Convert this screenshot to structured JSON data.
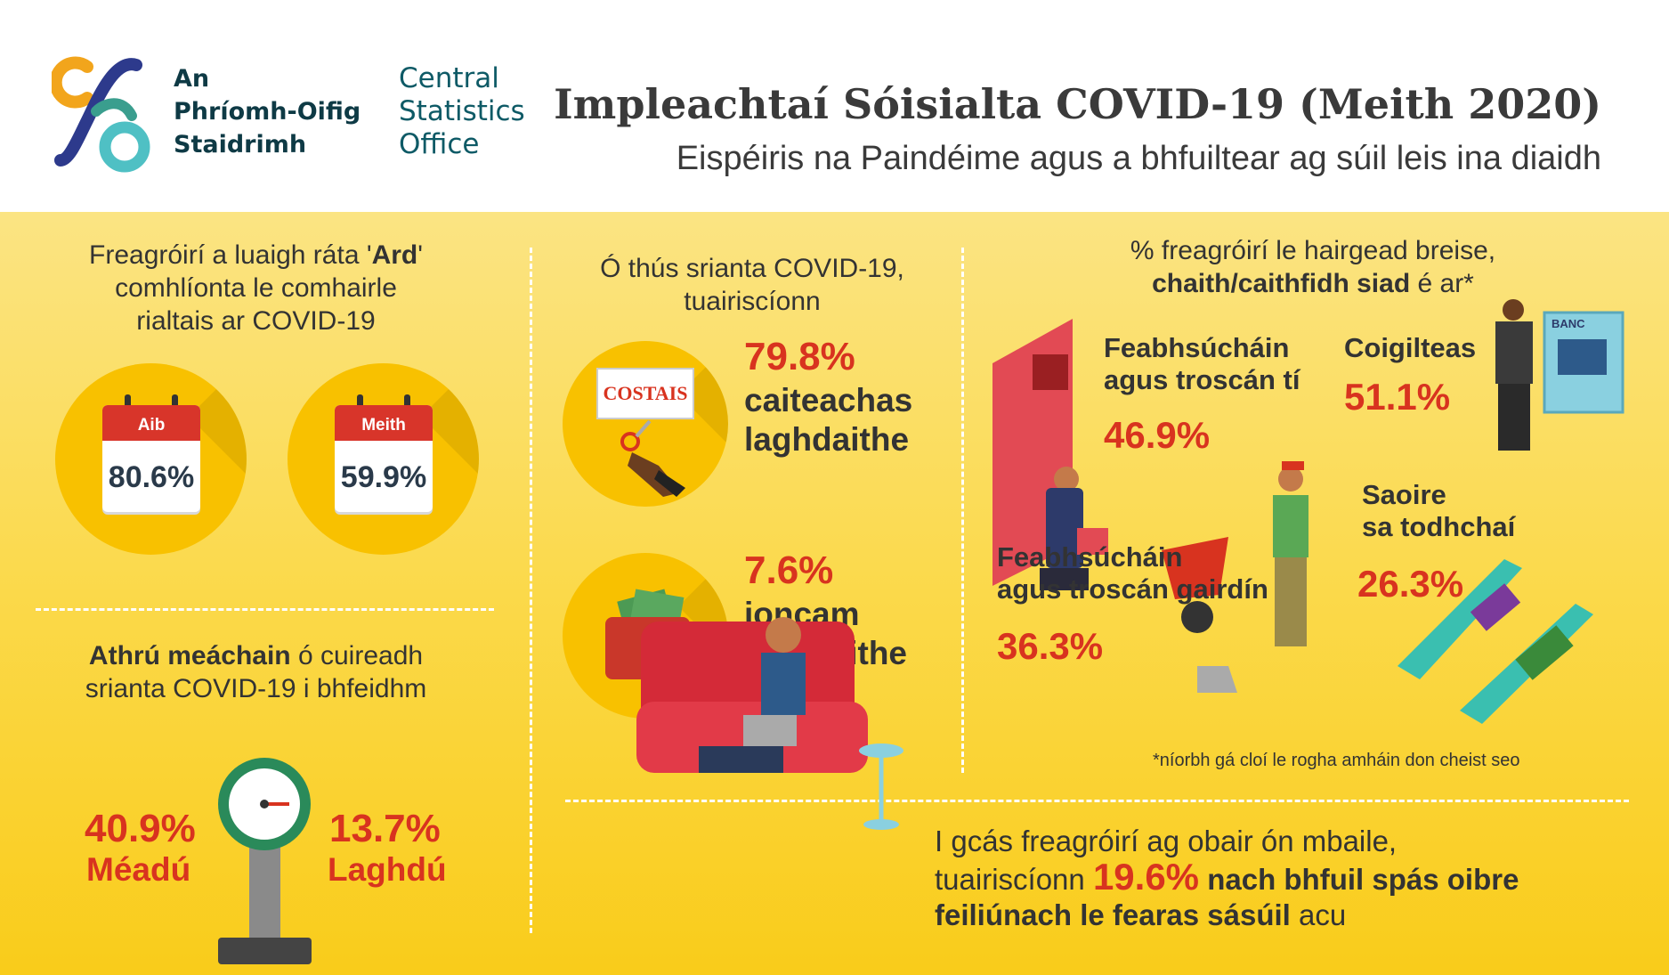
{
  "header": {
    "org_irish": [
      "An",
      "Phríomh-Oifig",
      "Staidrimh"
    ],
    "org_english": [
      "Central",
      "Statistics",
      "Office"
    ],
    "title": "Impleachtaí Sóisialta COVID-19 (Meith 2020)",
    "subtitle": "Eispéiris na Paindéime agus a bhfuiltear ag súil leis ina diaidh"
  },
  "compliance": {
    "heading_line1_pre": "Freagróirí a luaigh ráta '",
    "heading_line1_bold": "Ard",
    "heading_line1_post": "'",
    "heading_line2": "comhlíonta le comhairle",
    "heading_line3": "rialtais ar COVID-19",
    "april": {
      "month": "Aib",
      "value": "80.6%"
    },
    "may": {
      "month": "Meith",
      "value": "59.9%"
    }
  },
  "weight": {
    "heading_bold": "Athrú meáchain",
    "heading_rest": " ó cuireadh",
    "heading_line2": "srianta COVID-19 i bhfeidhm",
    "increase_pct": "40.9%",
    "increase_label": "Méadú",
    "decrease_pct": "13.7%",
    "decrease_label": "Laghdú"
  },
  "finance": {
    "heading_line1": "Ó thús srianta COVID-19,",
    "heading_line2": "tuairiscíonn",
    "costs_sign": "COSTAIS",
    "spending_pct": "79.8%",
    "spending_label1": "caiteachas",
    "spending_label2": "laghdaithe",
    "income_pct": "7.6%",
    "income_label1": "ioncam",
    "income_label2": "méadaithe"
  },
  "extra_money": {
    "heading_line1": "% freagróirí le hairgead breise,",
    "heading_bold": "chaith/caithfidh siad",
    "heading_post": " é ar*",
    "home": {
      "label1": "Feabhsúcháin",
      "label2": "agus troscán tí",
      "pct": "46.9%"
    },
    "savings": {
      "label": "Coigilteas",
      "pct": "51.1%"
    },
    "bank_sign": "BANC",
    "holiday": {
      "label1": "Saoire",
      "label2": "sa todhchaí",
      "pct": "26.3%"
    },
    "garden": {
      "label1": "Feabhsúcháin",
      "label2": "agus troscán gairdín",
      "pct": "36.3%"
    },
    "footnote": "*níorbh gá cloí le rogha amháin don cheist seo"
  },
  "wfh": {
    "line1": "I gcás freagróirí ag obair ón mbaile,",
    "line2_pre": "tuairiscíonn ",
    "line2_pct": "19.6%",
    "line2_bold": " nach bhfuil spás oibre",
    "line3_bold": "feiliúnach le fearas sásúil",
    "line3_post": " acu"
  },
  "colors": {
    "accent_red": "#d8331f",
    "circle": "#f8c100",
    "panel_yellow": "#fbd94a",
    "title_gray": "#3a3a3a"
  }
}
